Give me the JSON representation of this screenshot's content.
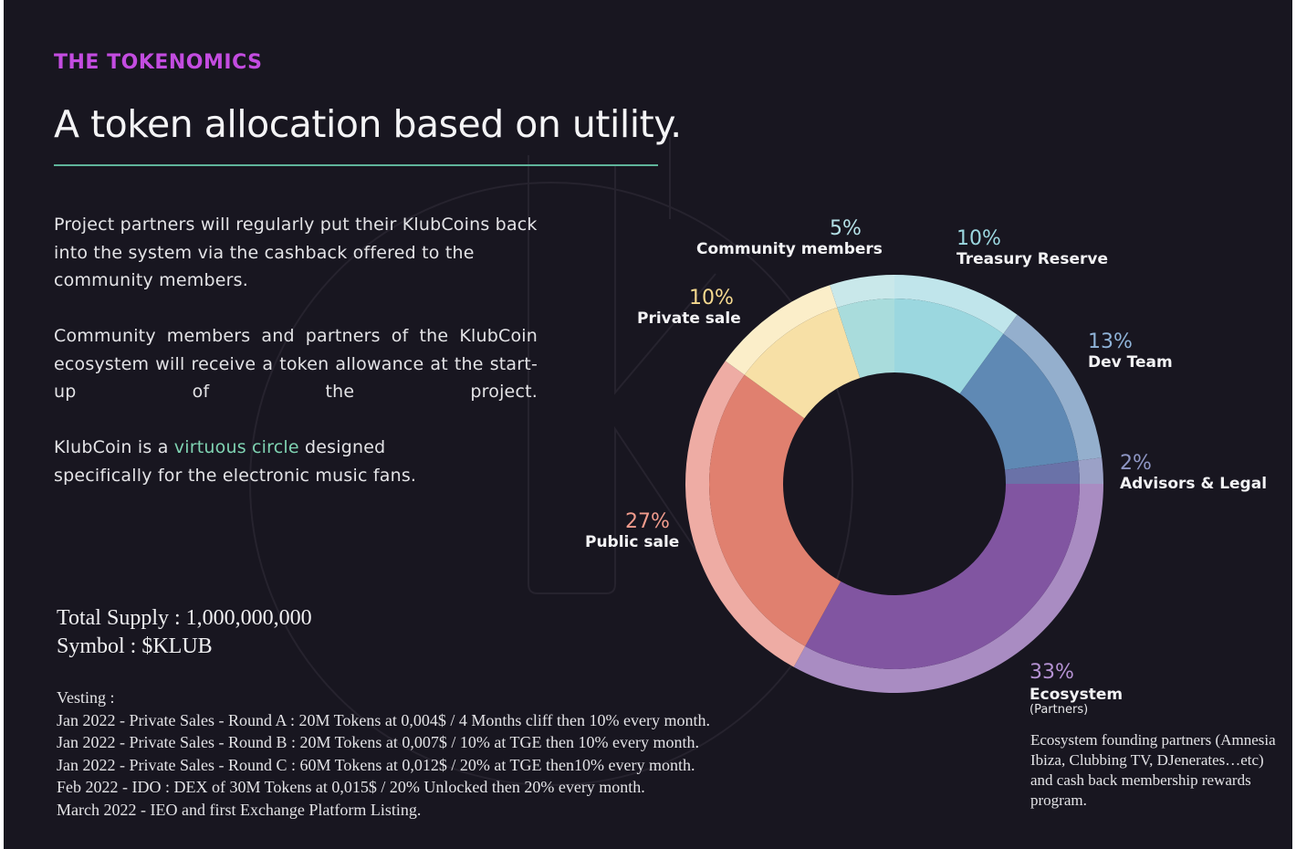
{
  "eyebrow": "THE TOKENOMICS",
  "headline": "A token allocation based on utility.",
  "intro": {
    "p1": "Project partners will regularly put their KlubCoins back into the system via the cashback offered to the community members.",
    "p2": "Community members and partners of the KlubCoin ecosystem will receive a token allowance at the start-up of the project.",
    "p3_before": "KlubCoin is a ",
    "p3_accent": "virtuous circle",
    "p3_after": " designed specifically for the electronic music fans."
  },
  "supply": {
    "total": "Total Supply : 1,000,000,000",
    "symbol": "Symbol : $KLUB"
  },
  "vesting": {
    "title": "Vesting :",
    "lines": [
      "Jan 2022 - Private Sales - Round A : 20M Tokens at 0,004$ / 4 Months cliff then 10% every month.",
      "Jan 2022 - Private Sales - Round B : 20M Tokens at 0,007$ / 10% at TGE then 10% every month.",
      "Jan 2022 - Private Sales - Round C : 60M Tokens at 0,012$ / 20% at TGE then10% every month.",
      "Feb 2022 - IDO : DEX of 30M Tokens at 0,015$ / 20% Unlocked then 20% every month.",
      "March 2022 - IEO and first Exchange Platform Listing."
    ]
  },
  "ecosystem_note": {
    "sub": "(Partners)",
    "description": "Ecosystem founding partners (Amnesia Ibiza, Clubbing TV, DJenerates…etc) and cash back membership rewards program."
  },
  "chart_data": {
    "type": "pie",
    "style": "donut",
    "start": "top",
    "direction": "clockwise",
    "unit": "%",
    "slices": [
      {
        "label": "Treasury Reserve",
        "value": 10,
        "pct_text": "10%",
        "color": "#9bd7df",
        "outer_color": "#c0e5eb",
        "pct_color": "#9bd7df"
      },
      {
        "label": "Dev Team",
        "value": 13,
        "pct_text": "13%",
        "color": "#5f89b4",
        "outer_color": "#94afcd",
        "pct_color": "#8fb3d8"
      },
      {
        "label": "Advisors & Legal",
        "value": 2,
        "pct_text": "2%",
        "color": "#6a72a8",
        "outer_color": "#9ba1c7",
        "pct_color": "#8e96c4"
      },
      {
        "label": "Ecosystem",
        "value": 33,
        "pct_text": "33%",
        "color": "#8155a1",
        "outer_color": "#a98cc2",
        "pct_color": "#b592d3"
      },
      {
        "label": "Public sale",
        "value": 27,
        "pct_text": "27%",
        "color": "#e0806f",
        "outer_color": "#eeaca4",
        "pct_color": "#f09b8c"
      },
      {
        "label": "Private sale",
        "value": 10,
        "pct_text": "10%",
        "color": "#f7e0a6",
        "outer_color": "#fbeec9",
        "pct_color": "#f5d98f"
      },
      {
        "label": "Community members",
        "value": 5,
        "pct_text": "5%",
        "color": "#a9dcdc",
        "outer_color": "#c9e8ea",
        "pct_color": "#b4e0e6"
      }
    ]
  }
}
